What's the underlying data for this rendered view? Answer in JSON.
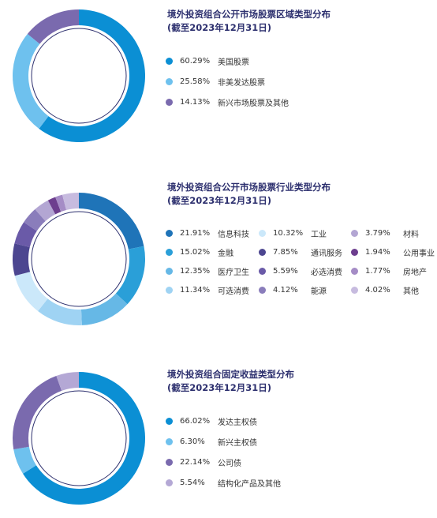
{
  "charts": [
    {
      "title_line1": "境外投资组合公开市场股票区域类型分布",
      "title_line2": "(截至2023年12月31日)"
    },
    {
      "title_line1": "境外投资组合公开市场股票行业类型分布",
      "title_line2": "(截至2023年12月31日)"
    },
    {
      "title_line1": "境外投资组合固定收益类型分布",
      "title_line2": "(截至2023年12月31日)"
    }
  ],
  "chart_data": [
    {
      "type": "pie",
      "title": "境外投资组合公开市场股票区域类型分布",
      "subtitle": "(截至2023年12月31日)",
      "labels": [
        "美国股票",
        "非美发达股票",
        "新兴市场股票及其他"
      ],
      "values": [
        60.29,
        25.58,
        14.13
      ],
      "value_labels": [
        "60.29%",
        "25.58%",
        "14.13%"
      ],
      "colors": [
        "#0b8fd4",
        "#6ec1ee",
        "#7a6aae"
      ],
      "style": "donut",
      "legend": "right"
    },
    {
      "type": "pie",
      "title": "境外投资组合公开市场股票行业类型分布",
      "subtitle": "(截至2023年12月31日)",
      "labels": [
        "信息科技",
        "金融",
        "医疗卫生",
        "可选消费",
        "工业",
        "通讯服务",
        "必选消费",
        "能源",
        "材料",
        "公用事业",
        "房地产",
        "其他"
      ],
      "values": [
        21.91,
        15.02,
        12.35,
        11.34,
        10.32,
        7.85,
        5.59,
        4.12,
        3.79,
        1.94,
        1.77,
        4.02
      ],
      "value_labels": [
        "21.91%",
        "15.02%",
        "12.35%",
        "11.34%",
        "10.32%",
        "7.85%",
        "5.59%",
        "4.12%",
        "3.79%",
        "1.94%",
        "1.77%",
        "4.02%"
      ],
      "colors": [
        "#1f74b8",
        "#2a9fd8",
        "#66b8e6",
        "#9fd3f3",
        "#cbe8fa",
        "#4c4690",
        "#6a5aa8",
        "#8a7dbb",
        "#b3a6d3",
        "#6d3e8e",
        "#a58cc6",
        "#c7bbdf"
      ],
      "style": "donut",
      "legend": "right"
    },
    {
      "type": "pie",
      "title": "境外投资组合固定收益类型分布",
      "subtitle": "(截至2023年12月31日)",
      "labels": [
        "发达主权债",
        "新兴主权债",
        "公司债",
        "结构化产品及其他"
      ],
      "values": [
        66.02,
        6.3,
        22.14,
        5.54
      ],
      "value_labels": [
        "66.02%",
        "6.30%",
        "22.14%",
        "5.54%"
      ],
      "colors": [
        "#0b8fd4",
        "#6ec1ee",
        "#7a6aae",
        "#b4a8d5"
      ],
      "style": "donut",
      "legend": "right"
    }
  ]
}
